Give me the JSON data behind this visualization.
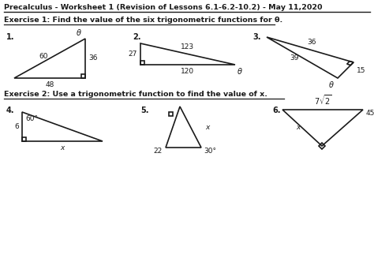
{
  "title": "Precalculus - Worksheet 1 (Revision of Lessons 6.1-6.2-10.2) - May 11,2020",
  "exercise1_label": "Exercise 1: Find the value of the six trigonometric functions for θ.",
  "exercise2_label": "Exercise 2: Use a trigonometric function to find the value of x.",
  "bg_color": "#ffffff",
  "line_color": "#1a1a1a",
  "lw": 1.2
}
